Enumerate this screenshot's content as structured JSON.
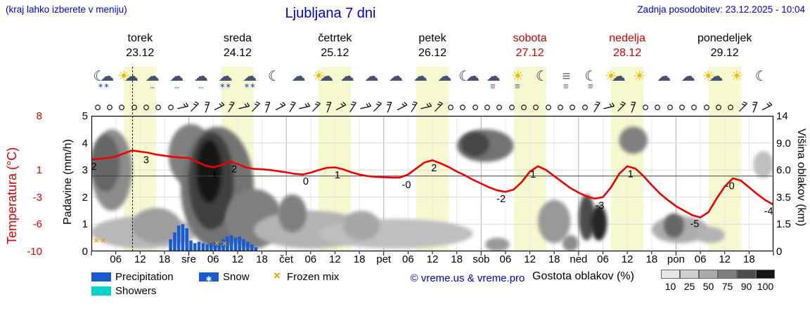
{
  "colors": {
    "accent_blue": "#0000cc",
    "day_red": "#cc0000",
    "temp_line": "#ee0000",
    "precip": "#1a5bd0",
    "showers": "#00d5c8",
    "frozen": "#f0a000",
    "band": "#f6f9cf",
    "sun": "#eebb00",
    "cloud": "#46536e",
    "moon": "#23304e",
    "flake": "#2255cc",
    "drop": "#2255cc",
    "fog": "#5a6472"
  },
  "header": {
    "hint": "(kraj lahko izberete v meniju)",
    "title": "Ljubljana 7 dni",
    "updated": "Zadnja posodobitev: 23.12.2025 - 10:04"
  },
  "axes": {
    "temp_label": "Temperatura (°C)",
    "precip_label": "Padavine (mm/h)",
    "cloud_label": "Višina oblakov (km)",
    "temp_ticks": [
      {
        "v": "8",
        "u": 5
      },
      {
        "v": "1",
        "u": 3
      },
      {
        "v": "-3",
        "u": 2
      },
      {
        "v": "-6",
        "u": 1
      },
      {
        "v": "-10",
        "u": 0
      }
    ],
    "precip_ticks": [
      {
        "v": "5",
        "u": 5
      },
      {
        "v": "4",
        "u": 4
      },
      {
        "v": "3",
        "u": 3
      },
      {
        "v": "2",
        "u": 2
      },
      {
        "v": "1",
        "u": 1
      },
      {
        "v": "0",
        "u": 0
      }
    ],
    "cloud_ticks": [
      {
        "v": "14",
        "u": 5
      },
      {
        "v": "9.0",
        "u": 4
      },
      {
        "v": "6.0",
        "u": 3
      },
      {
        "v": "3.5",
        "u": 2
      },
      {
        "v": "1.5",
        "u": 1
      },
      {
        "v": "0",
        "u": 0
      }
    ],
    "hour_ticks": [
      "06",
      "12",
      "18"
    ],
    "day_abbrevs": [
      "sre",
      "čet",
      "pet",
      "sob",
      "ned",
      "pon"
    ]
  },
  "legend": {
    "precipitation": "Precipitation",
    "snow": "Snow",
    "frozen_mix": "Frozen mix",
    "showers": "Showers",
    "copyright": "© vreme.us & vreme.pro",
    "cloud_density_label": "Gostota oblakov (%)",
    "cloud_density_ticks": [
      "10",
      "25",
      "50",
      "75",
      "90",
      "100"
    ]
  },
  "chart_data": {
    "type": "meteogram",
    "location": "Ljubljana",
    "days": [
      {
        "name": "torek",
        "date": "23.12",
        "color": "#000000"
      },
      {
        "name": "sreda",
        "date": "24.12",
        "color": "#000000"
      },
      {
        "name": "četrtek",
        "date": "25.12",
        "color": "#000000"
      },
      {
        "name": "petek",
        "date": "26.12",
        "color": "#000000"
      },
      {
        "name": "sobota",
        "date": "27.12",
        "color": "#cc0000"
      },
      {
        "name": "nedelja",
        "date": "28.12",
        "color": "#cc0000"
      },
      {
        "name": "ponedeljek",
        "date": "29.12",
        "color": "#000000"
      }
    ],
    "hours_total": 168,
    "temp_axis_range": [
      -10,
      8
    ],
    "precip_axis_range": [
      0,
      5
    ],
    "daylight_bands": [
      [
        8,
        16
      ],
      [
        32,
        40
      ],
      [
        56,
        64
      ],
      [
        80,
        88
      ],
      [
        104,
        112
      ],
      [
        128,
        136
      ],
      [
        152,
        160
      ]
    ],
    "now_hour": 10.1,
    "icons": [
      "moon-snow",
      "part-sun",
      "rain",
      "rain",
      "rain",
      "snow",
      "snow",
      "moon",
      "cloud",
      "part-sun",
      "cloud",
      "cloud",
      "cloud",
      "cloud",
      "cloud",
      "moon-cloud",
      "fog-cloud",
      "fog-sun",
      "moon",
      "fog",
      "fog-moon",
      "part-sun",
      "sun",
      "cloud",
      "cloud",
      "part-sun",
      "sun",
      "moon"
    ],
    "wind": [
      "cccccccb",
      "bbbbbbbb",
      "bbbbbbbb",
      "bbbbbccc",
      "cccccccc",
      "cbbbbccc",
      "cccccbbb"
    ],
    "temperature": {
      "hour_start": 0,
      "hour_step": 2,
      "values": [
        2.2,
        2.3,
        2.4,
        2.6,
        3.0,
        3.4,
        3.25,
        3.1,
        2.85,
        2.7,
        2.55,
        2.45,
        2.4,
        1.9,
        1.4,
        1.15,
        1.45,
        1.95,
        1.6,
        1.15,
        0.95,
        0.9,
        0.8,
        0.65,
        0.5,
        0.3,
        0.2,
        0.45,
        0.8,
        1.1,
        1.15,
        0.9,
        0.5,
        0.2,
        0.0,
        -0.1,
        -0.15,
        -0.2,
        -0.2,
        0.2,
        1.0,
        1.8,
        2.1,
        1.7,
        1.2,
        0.6,
        0.1,
        -0.5,
        -1.0,
        -1.5,
        -1.9,
        -2.1,
        -1.8,
        -0.8,
        0.6,
        1.3,
        0.8,
        0.0,
        -0.8,
        -1.6,
        -2.2,
        -2.7,
        -3.0,
        -2.8,
        -1.5,
        0.3,
        1.3,
        1.0,
        0.0,
        -1.2,
        -2.3,
        -3.2,
        -4.0,
        -4.6,
        -5.2,
        -5.5,
        -4.8,
        -3.0,
        -1.4,
        -0.3,
        -0.6,
        -1.5,
        -2.4,
        -3.2,
        -3.8
      ]
    },
    "temp_point_labels": [
      {
        "text": "2",
        "h": 0.6,
        "t": 2.2
      },
      {
        "text": "3",
        "h": 13.5,
        "t": 3.1
      },
      {
        "text": "1",
        "h": 30.3,
        "t": 1.15
      },
      {
        "text": "2",
        "h": 35.2,
        "t": 1.9
      },
      {
        "text": "0",
        "h": 52.8,
        "t": 0.25
      },
      {
        "text": "1",
        "h": 60.6,
        "t": 1.1
      },
      {
        "text": "-0",
        "h": 77.6,
        "t": -0.2
      },
      {
        "text": "2",
        "h": 84.4,
        "t": 2.05
      },
      {
        "text": "-2",
        "h": 100.9,
        "t": -2.05
      },
      {
        "text": "1",
        "h": 108.8,
        "t": 1.2
      },
      {
        "text": "-3",
        "h": 125.2,
        "t": -2.95
      },
      {
        "text": "1",
        "h": 132.8,
        "t": 1.25
      },
      {
        "text": "-5",
        "h": 148.6,
        "t": -5.4
      },
      {
        "text": "-0",
        "h": 157.3,
        "t": -0.35
      },
      {
        "text": "-4",
        "h": 166.8,
        "t": -3.7
      }
    ],
    "precip_bars": [
      [
        19.5,
        0.45
      ],
      [
        20.5,
        0.7
      ],
      [
        21.5,
        0.95
      ],
      [
        22.5,
        1.0
      ],
      [
        23.5,
        0.85
      ],
      [
        24.5,
        0.4
      ],
      [
        25.5,
        0.3
      ],
      [
        26.5,
        0.35
      ],
      [
        27.5,
        0.3
      ],
      [
        28.5,
        0.25
      ],
      [
        29.5,
        0.3
      ],
      [
        30.5,
        0.35
      ],
      [
        31.5,
        0.3
      ],
      [
        32.5,
        0.45
      ],
      [
        33.5,
        0.55
      ],
      [
        34.5,
        0.6
      ],
      [
        35.5,
        0.5
      ],
      [
        36.5,
        0.55
      ],
      [
        37.5,
        0.45
      ],
      [
        38.5,
        0.35
      ],
      [
        39.5,
        0.25
      ],
      [
        40.5,
        0.15
      ]
    ],
    "frozen_marks": [
      {
        "h": 1.2,
        "u": 0.4
      },
      {
        "h": 2.9,
        "u": 0.4
      },
      {
        "h": 30.9,
        "u": 0.3
      },
      {
        "h": 32.8,
        "u": 0.28
      }
    ],
    "clouds": [
      [
        0,
        10,
        1.5,
        4.5,
        0.45
      ],
      [
        0,
        7,
        2.2,
        4.3,
        0.6
      ],
      [
        0,
        26,
        0.1,
        1.3,
        0.28
      ],
      [
        10,
        22,
        0.3,
        1.6,
        0.38
      ],
      [
        19,
        30,
        2.4,
        4.7,
        0.5
      ],
      [
        22,
        40,
        0.1,
        4.6,
        0.55
      ],
      [
        24,
        35,
        0.8,
        4.4,
        0.75
      ],
      [
        26,
        32,
        1.8,
        4.1,
        0.92
      ],
      [
        33,
        47,
        0.1,
        2.3,
        0.5
      ],
      [
        40,
        68,
        0.1,
        1.5,
        0.3
      ],
      [
        46,
        53,
        0.7,
        2.1,
        0.5
      ],
      [
        56,
        94,
        0.1,
        1.2,
        0.25
      ],
      [
        62,
        71,
        0.4,
        1.5,
        0.35
      ],
      [
        90,
        104,
        3.3,
        4.5,
        0.55
      ],
      [
        91,
        98,
        3.5,
        4.4,
        0.72
      ],
      [
        97,
        103,
        0,
        0.5,
        0.4
      ],
      [
        110,
        118,
        0.3,
        1.9,
        0.4
      ],
      [
        116,
        120,
        0,
        0.6,
        0.45
      ],
      [
        120,
        124,
        0.4,
        2.1,
        0.7
      ],
      [
        123,
        127,
        0.4,
        1.7,
        0.85
      ],
      [
        130,
        137,
        3.6,
        4.6,
        0.5
      ],
      [
        138,
        152,
        0.3,
        1.3,
        0.32
      ],
      [
        141,
        146,
        0.5,
        1.4,
        0.6
      ],
      [
        149,
        156,
        0.3,
        0.9,
        0.3
      ],
      [
        163,
        168,
        2.7,
        3.7,
        0.25
      ]
    ]
  }
}
